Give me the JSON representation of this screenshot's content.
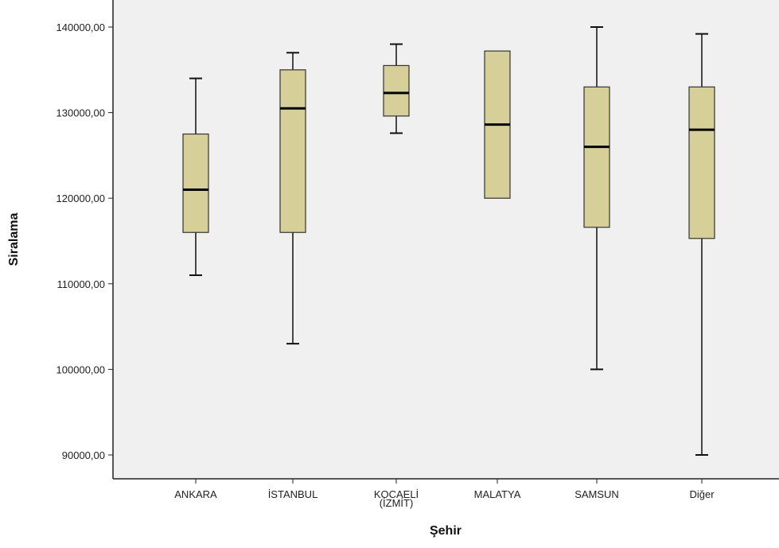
{
  "chart_data": {
    "type": "boxplot",
    "title": "",
    "xlabel": "Şehir",
    "ylabel": "Siralama",
    "ylim": [
      86000,
      142000
    ],
    "yticks": [
      90000,
      100000,
      110000,
      120000,
      130000,
      140000
    ],
    "ytick_labels": [
      "90000,00",
      "100000,00",
      "110000,00",
      "120000,00",
      "130000,00",
      "140000,00"
    ],
    "categories": [
      {
        "label": [
          "ANKARA"
        ],
        "min": 111000,
        "q1": 116000,
        "median": 121000,
        "q3": 127500,
        "max": 134000
      },
      {
        "label": [
          "İSTANBUL"
        ],
        "min": 103000,
        "q1": 116000,
        "median": 130500,
        "q3": 135000,
        "max": 137000
      },
      {
        "label": [
          "KOCAELİ",
          "(İZMİT)"
        ],
        "min": 127600,
        "q1": 129600,
        "median": 132300,
        "q3": 135500,
        "max": 138000
      },
      {
        "label": [
          "MALATYA"
        ],
        "min": 120000,
        "q1": 120000,
        "median": 128600,
        "q3": 137200,
        "max": 137200
      },
      {
        "label": [
          "SAMSUN"
        ],
        "min": 100000,
        "q1": 116600,
        "median": 126000,
        "q3": 133000,
        "max": 140000
      },
      {
        "label": [
          "Diğer"
        ],
        "min": 90000,
        "q1": 115300,
        "median": 128000,
        "q3": 133000,
        "max": 139200
      }
    ],
    "box_fill": "#d6cf98",
    "box_stroke": "#333333",
    "plot_background": "#f0f0f0",
    "grid": false,
    "legend": "none"
  }
}
